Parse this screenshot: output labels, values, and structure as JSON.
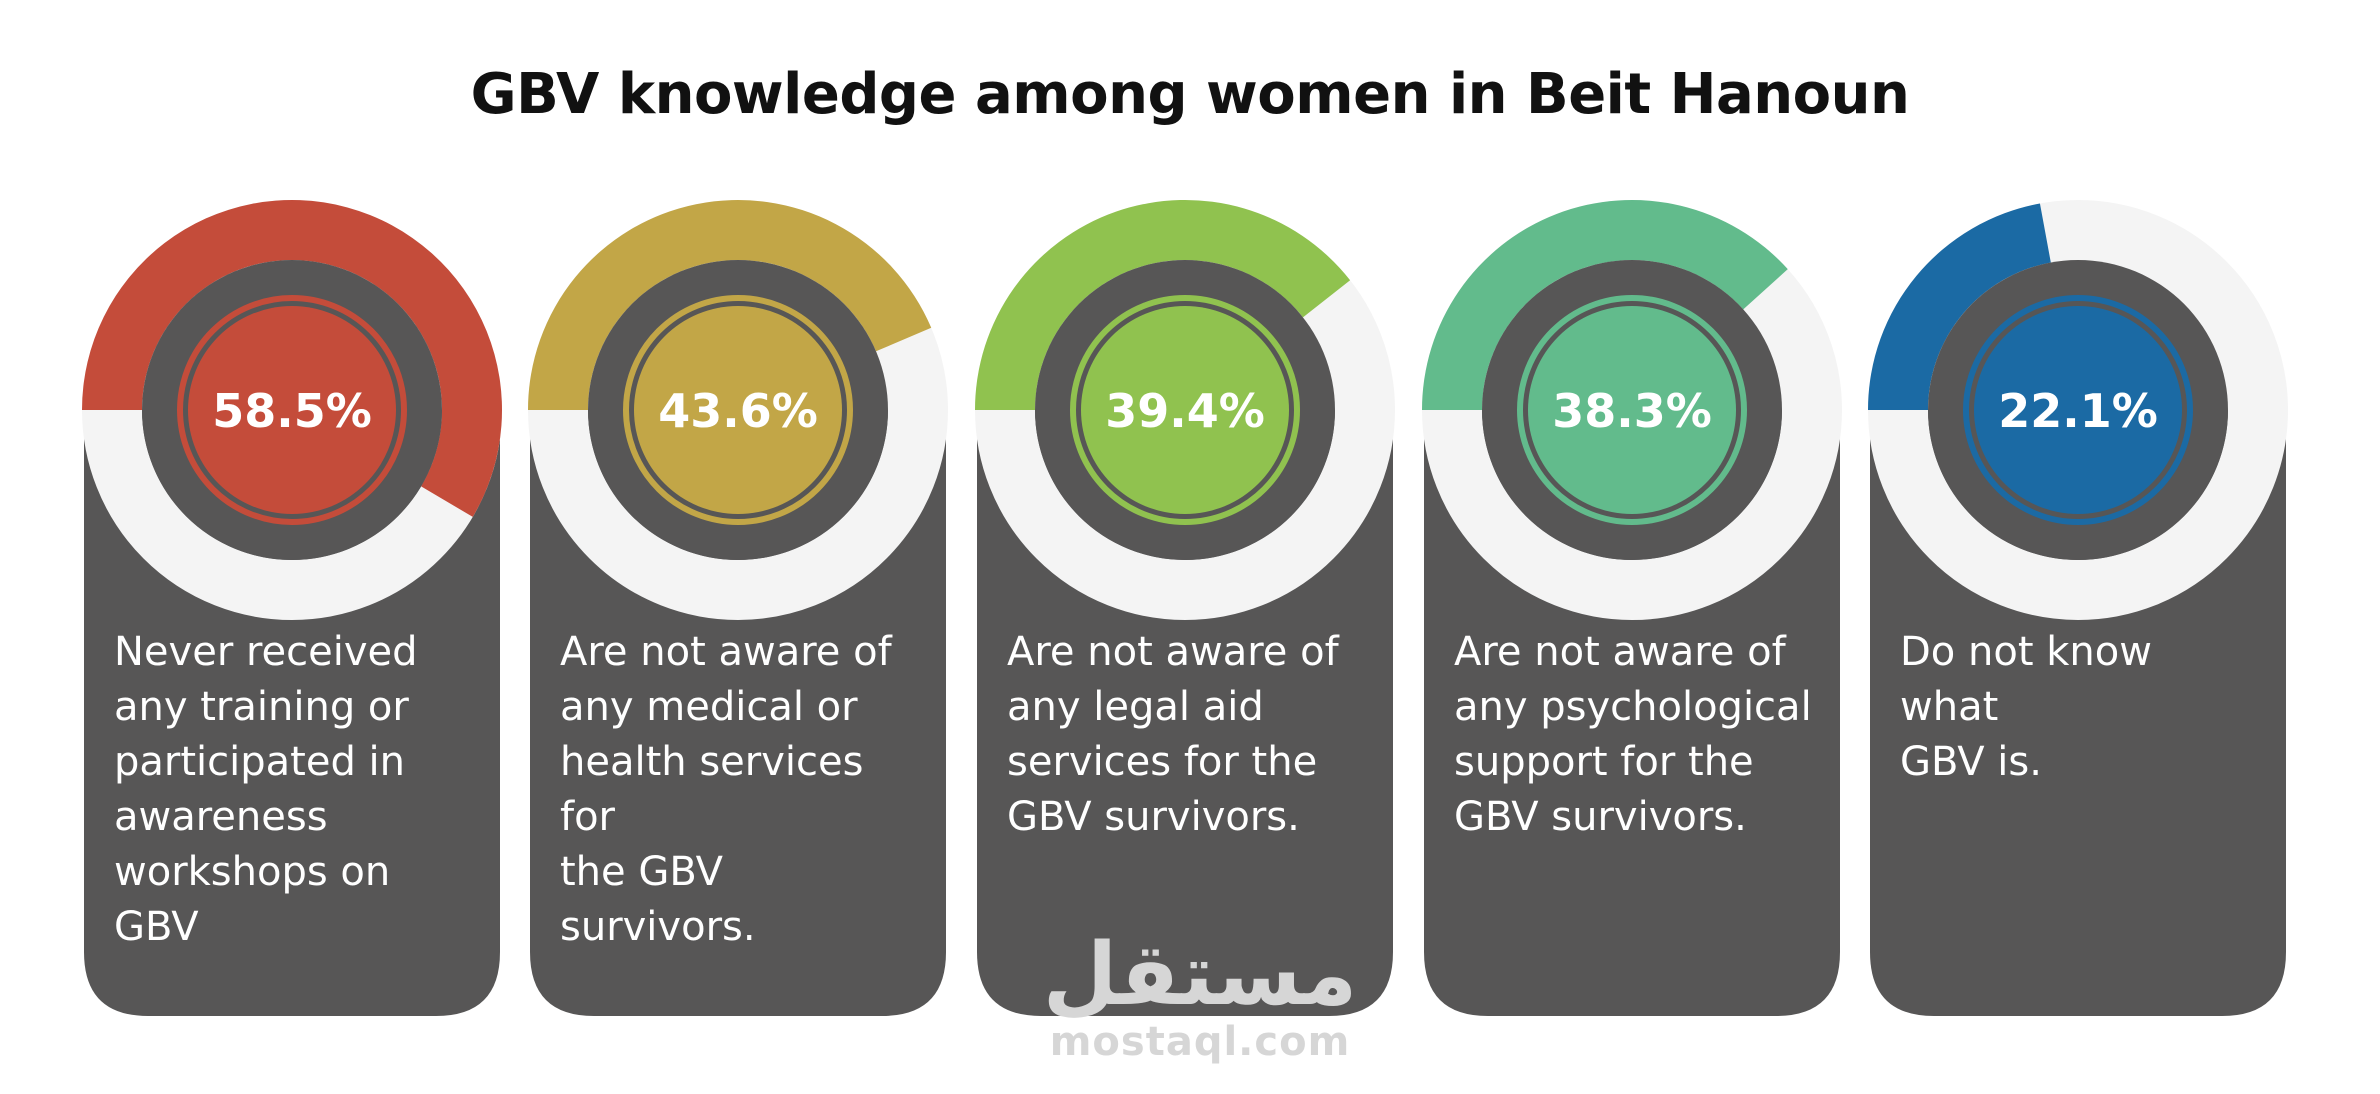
{
  "chart_data": {
    "type": "donut-cards",
    "title": "GBV knowledge among women in Beit Hanoun",
    "items": [
      {
        "value": 58.5,
        "label": "58.5%",
        "color": "#c44c3a",
        "text_lines": [
          "Never received",
          "any training or",
          "participated in",
          "awareness",
          "workshops on GBV"
        ]
      },
      {
        "value": 43.6,
        "label": "43.6%",
        "color": "#c2a647",
        "text_lines": [
          "Are not aware of",
          "any medical or",
          "health services for",
          "the GBV survivors."
        ]
      },
      {
        "value": 39.4,
        "label": "39.4%",
        "color": "#90c24f",
        "text_lines": [
          "Are not aware of",
          "any legal aid",
          "services for the",
          "GBV survivors."
        ]
      },
      {
        "value": 38.3,
        "label": "38.3%",
        "color": "#62bb8c",
        "text_lines": [
          "Are not aware of",
          "any psychological",
          "support for the",
          "GBV survivors."
        ]
      },
      {
        "value": 22.1,
        "label": "22.1%",
        "color": "#1b6aa4",
        "text_lines": [
          "Do not know what",
          "GBV is."
        ]
      }
    ]
  },
  "watermark": {
    "arabic": "مستقل",
    "latin": "mostaql.com"
  }
}
